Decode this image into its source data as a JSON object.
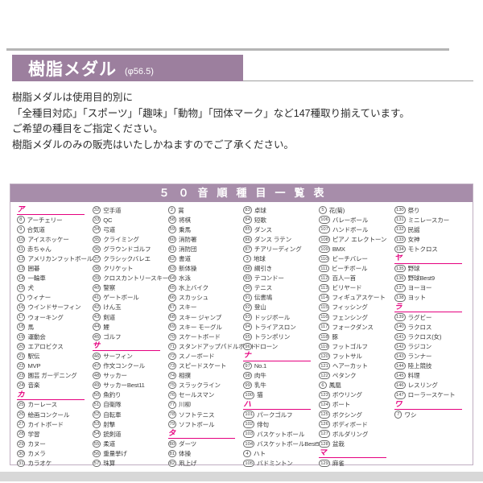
{
  "colors": {
    "purple": "#9c7f9e",
    "band": "#a78daa",
    "pink": "#e5007f",
    "tborder": "#bfaec1",
    "text": "#333333",
    "grayline": "#b5b5b5",
    "strip": "#d8d8d8"
  },
  "header": {
    "title": "樹脂メダル",
    "diameter": "(φ56.5)"
  },
  "intro_lines": [
    "樹脂メダルは使用目的別に",
    "「全種目対応」「スポーツ」「趣味」「動物」「団体マーク」など147種取り揃えています。",
    "ご希望の種目をご指定ください。",
    "樹脂メダルのみの販売はいたしかねますのでご了承ください。"
  ],
  "table": {
    "title": "５０音順種目一覧表",
    "columns": [
      [
        {
          "s": "ア"
        },
        {
          "n": 8,
          "t": "アーチェリー"
        },
        {
          "n": 9,
          "t": "合気道"
        },
        {
          "n": 10,
          "t": "アイスホッケー"
        },
        {
          "n": 11,
          "t": "赤ちゃん"
        },
        {
          "n": 12,
          "t": "アメリカンフットボール"
        },
        {
          "n": 13,
          "t": "囲碁"
        },
        {
          "n": 14,
          "t": "一輪車"
        },
        {
          "n": 15,
          "t": "犬"
        },
        {
          "n": 1,
          "t": "ウィナー"
        },
        {
          "n": 16,
          "t": "ウインドサーフィン"
        },
        {
          "n": 17,
          "t": "ウォーキング"
        },
        {
          "n": 18,
          "t": "馬"
        },
        {
          "n": 19,
          "t": "運動会"
        },
        {
          "n": 20,
          "t": "エアロビクス"
        },
        {
          "n": 21,
          "t": "駅伝"
        },
        {
          "n": 22,
          "t": "MVP"
        },
        {
          "n": 23,
          "t": "園芸 ガーデニング"
        },
        {
          "n": 24,
          "t": "音楽"
        },
        {
          "s": "カ"
        },
        {
          "n": 25,
          "t": "カーレース"
        },
        {
          "n": 26,
          "t": "絵画コンクール"
        },
        {
          "n": 27,
          "t": "カイトボード"
        },
        {
          "n": 28,
          "t": "学習"
        },
        {
          "n": 29,
          "t": "カヌー"
        },
        {
          "n": 30,
          "t": "カメラ"
        },
        {
          "n": 31,
          "t": "カラオケ"
        }
      ],
      [
        {
          "n": 32,
          "t": "空手道"
        },
        {
          "n": 33,
          "t": "QC"
        },
        {
          "n": 34,
          "t": "弓道"
        },
        {
          "n": 35,
          "t": "クライミング"
        },
        {
          "n": 36,
          "t": "グラウンドゴルフ"
        },
        {
          "n": 37,
          "t": "クラシックバレエ"
        },
        {
          "n": 38,
          "t": "クリケット"
        },
        {
          "n": 39,
          "t": "クロスカントリースキー"
        },
        {
          "n": 40,
          "t": "警察"
        },
        {
          "n": 41,
          "t": "ゲートボール"
        },
        {
          "n": 42,
          "t": "けん玉"
        },
        {
          "n": 43,
          "t": "剣道"
        },
        {
          "n": 44,
          "t": "鯉"
        },
        {
          "n": 45,
          "t": "ゴルフ"
        },
        {
          "s": "サ"
        },
        {
          "n": 46,
          "t": "サーフィン"
        },
        {
          "n": 47,
          "t": "作文コンクール"
        },
        {
          "n": 48,
          "t": "サッカー"
        },
        {
          "n": 49,
          "t": "サッカーBest11"
        },
        {
          "n": 50,
          "t": "魚釣り"
        },
        {
          "n": 51,
          "t": "自衛隊"
        },
        {
          "n": 52,
          "t": "自転車"
        },
        {
          "n": 53,
          "t": "射撃"
        },
        {
          "n": 54,
          "t": "銃剣道"
        },
        {
          "n": 55,
          "t": "柔道"
        },
        {
          "n": 56,
          "t": "重量挙げ"
        },
        {
          "n": 57,
          "t": "珠算"
        }
      ],
      [
        {
          "n": 2,
          "t": "賞"
        },
        {
          "n": 58,
          "t": "将棋"
        },
        {
          "n": 59,
          "t": "乗馬"
        },
        {
          "n": 60,
          "t": "消防署"
        },
        {
          "n": 61,
          "t": "消防団"
        },
        {
          "n": 62,
          "t": "書道"
        },
        {
          "n": 63,
          "t": "新体操"
        },
        {
          "n": 64,
          "t": "水泳"
        },
        {
          "n": 65,
          "t": "水上バイク"
        },
        {
          "n": 66,
          "t": "スカッシュ"
        },
        {
          "n": 67,
          "t": "スキー"
        },
        {
          "n": 68,
          "t": "スキー ジャンプ"
        },
        {
          "n": 69,
          "t": "スキー モーグル"
        },
        {
          "n": 70,
          "t": "スケートボード"
        },
        {
          "n": 71,
          "t": "スタンドアップパドルボード"
        },
        {
          "n": 72,
          "t": "スノーボード"
        },
        {
          "n": 73,
          "t": "スピードスケート"
        },
        {
          "n": 74,
          "t": "相撲"
        },
        {
          "n": 75,
          "t": "スラックライン"
        },
        {
          "n": 76,
          "t": "セールスマン"
        },
        {
          "n": 77,
          "t": "川柳"
        },
        {
          "n": 78,
          "t": "ソフトテニス"
        },
        {
          "n": 79,
          "t": "ソフトボール"
        },
        {
          "s": "タ"
        },
        {
          "n": 80,
          "t": "ダーツ"
        },
        {
          "n": 81,
          "t": "体操"
        },
        {
          "n": 82,
          "t": "凧上げ"
        }
      ],
      [
        {
          "n": 83,
          "t": "卓球"
        },
        {
          "n": 84,
          "t": "短歌"
        },
        {
          "n": 85,
          "t": "ダンス"
        },
        {
          "n": 86,
          "t": "ダンス ラテン"
        },
        {
          "n": 87,
          "t": "チアリーディング"
        },
        {
          "n": 3,
          "t": "地球"
        },
        {
          "n": 88,
          "t": "綱引き"
        },
        {
          "n": 89,
          "t": "テコンドー"
        },
        {
          "n": 90,
          "t": "テニス"
        },
        {
          "n": 91,
          "t": "伝書鳩"
        },
        {
          "n": 92,
          "t": "登山"
        },
        {
          "n": 93,
          "t": "ドッジボール"
        },
        {
          "n": 94,
          "t": "トライアスロン"
        },
        {
          "n": 95,
          "t": "トランポリン"
        },
        {
          "n": 96,
          "t": "ドローン"
        },
        {
          "s": "ナ"
        },
        {
          "n": 97,
          "t": "No.1"
        },
        {
          "n": 98,
          "t": "肉牛"
        },
        {
          "n": 99,
          "t": "乳牛"
        },
        {
          "n": 100,
          "t": "猫"
        },
        {
          "s": "ハ"
        },
        {
          "n": 101,
          "t": "パークゴルフ"
        },
        {
          "n": 102,
          "t": "俳句"
        },
        {
          "n": 103,
          "t": "バスケットボール"
        },
        {
          "n": 104,
          "t": "バスケットボールBest5"
        },
        {
          "n": 4,
          "t": "ハト"
        },
        {
          "n": 105,
          "t": "バドミントン"
        }
      ],
      [
        {
          "n": 5,
          "t": "花(菊)"
        },
        {
          "n": 106,
          "t": "バレーボール"
        },
        {
          "n": 107,
          "t": "ハンドボール"
        },
        {
          "n": 108,
          "t": "ピアノ エレクトーン"
        },
        {
          "n": 109,
          "t": "BMX"
        },
        {
          "n": 110,
          "t": "ビーチバレー"
        },
        {
          "n": 111,
          "t": "ビーチボール"
        },
        {
          "n": 112,
          "t": "百人一首"
        },
        {
          "n": 113,
          "t": "ビリヤード"
        },
        {
          "n": 114,
          "t": "フィギュアスケート"
        },
        {
          "n": 115,
          "t": "フィッシング"
        },
        {
          "n": 116,
          "t": "フェンシング"
        },
        {
          "n": 117,
          "t": "フォークダンス"
        },
        {
          "n": 118,
          "t": "豚"
        },
        {
          "n": 119,
          "t": "フットゴルフ"
        },
        {
          "n": 120,
          "t": "フットサル"
        },
        {
          "n": 121,
          "t": "ヘアーカット"
        },
        {
          "n": 122,
          "t": "ペタンク"
        },
        {
          "n": 6,
          "t": "鳳凰"
        },
        {
          "n": 123,
          "t": "ボウリング"
        },
        {
          "n": 124,
          "t": "ボート"
        },
        {
          "n": 125,
          "t": "ボクシング"
        },
        {
          "n": 126,
          "t": "ボディボード"
        },
        {
          "n": 127,
          "t": "ボルダリング"
        },
        {
          "n": 128,
          "t": "盆栽"
        },
        {
          "s": "マ"
        },
        {
          "n": 129,
          "t": "麻雀"
        }
      ],
      [
        {
          "n": 130,
          "t": "祭り"
        },
        {
          "n": 131,
          "t": "ミニレースカー"
        },
        {
          "n": 132,
          "t": "民謡"
        },
        {
          "n": 133,
          "t": "女神"
        },
        {
          "n": 134,
          "t": "モトクロス"
        },
        {
          "s": "ヤ"
        },
        {
          "n": 135,
          "t": "野球"
        },
        {
          "n": 136,
          "t": "野球Best9"
        },
        {
          "n": 137,
          "t": "ヨーヨー"
        },
        {
          "n": 138,
          "t": "ヨット"
        },
        {
          "s": "ラ"
        },
        {
          "n": 139,
          "t": "ラグビー"
        },
        {
          "n": 140,
          "t": "ラクロス"
        },
        {
          "n": 141,
          "t": "ラクロス(女)"
        },
        {
          "n": 142,
          "t": "ラジコン"
        },
        {
          "n": 143,
          "t": "ランナー"
        },
        {
          "n": 144,
          "t": "陸上競技"
        },
        {
          "n": 145,
          "t": "料理"
        },
        {
          "n": 146,
          "t": "レスリング"
        },
        {
          "n": 147,
          "t": "ローラースケート"
        },
        {
          "s": "ワ"
        },
        {
          "n": 7,
          "t": "ワシ"
        }
      ]
    ]
  }
}
